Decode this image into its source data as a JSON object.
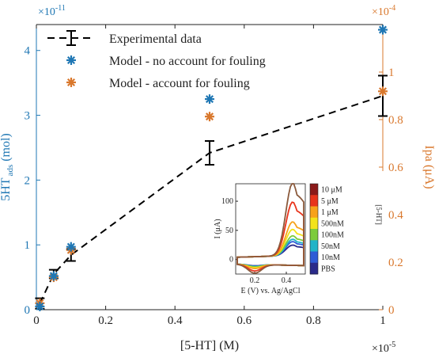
{
  "chart_data": {
    "type": "scatter",
    "x_exponent_label": "×10",
    "x_exponent_power": "-5",
    "y_left_exponent_label": "×10",
    "y_left_exponent_power": "-11",
    "y_right_exponent_label": "×10",
    "y_right_exponent_power": "-4",
    "xlabel": "[5-HT] (M)",
    "ylabel_left_main": "5HT",
    "ylabel_left_sub": "ads",
    "ylabel_left_unit": "(mol)",
    "ylabel_right": "Ipa (μA)",
    "xlim": [
      0,
      1.0
    ],
    "ylim_left": [
      0,
      4.4
    ],
    "ylim_right": [
      0,
      1.2
    ],
    "x_ticks": [
      0,
      0.2,
      0.4,
      0.6,
      0.8,
      1
    ],
    "x_tick_labels": [
      "0",
      "0.2",
      "0.4",
      "0.6",
      "0.8",
      "1"
    ],
    "y_left_ticks": [
      0,
      1,
      2,
      3,
      4
    ],
    "y_left_tick_labels": [
      "0",
      "1",
      "2",
      "3",
      "4"
    ],
    "y_right_ticks": [
      0,
      0.2,
      0.4,
      0.6,
      0.8,
      1
    ],
    "y_right_tick_labels": [
      "0",
      "0.2",
      "0.4",
      "0.6",
      "0.8",
      "1"
    ],
    "colors": {
      "left_axis": "#1f77b4",
      "right_axis": "#d9782d",
      "experimental": "#000000",
      "model_no_fouling": "#1f77b4",
      "model_fouling": "#d9782d"
    },
    "legend_position": "top-left",
    "series": [
      {
        "name": "Experimental data",
        "style": "dashed-errorbar",
        "axis": "right",
        "x": [
          0.01,
          0.05,
          0.1,
          0.5,
          1.0
        ],
        "y": [
          0.026,
          0.15,
          0.23,
          0.66,
          0.9
        ],
        "err": [
          0.022,
          0.018,
          0.025,
          0.05,
          0.085
        ]
      },
      {
        "name": "Model - no account for fouling",
        "style": "asterisk",
        "axis": "left",
        "x": [
          0.01,
          0.05,
          0.1,
          0.5,
          1.0
        ],
        "y": [
          0.05,
          0.52,
          0.97,
          3.25,
          4.32
        ]
      },
      {
        "name": "Model - account for fouling",
        "style": "asterisk",
        "axis": "left",
        "x": [
          0.01,
          0.05,
          0.1,
          0.5,
          1.0
        ],
        "y": [
          0.1,
          0.5,
          0.92,
          2.98,
          3.37
        ]
      }
    ],
    "inset": {
      "xlabel": "E (V) vs. Ag/AgCl",
      "ylabel": "I (μA)",
      "colorbar_label": "[5-HT]",
      "x_ticks": [
        0.2,
        0.4
      ],
      "x_tick_labels": [
        "0.2",
        "0.4"
      ],
      "y_ticks": [
        0,
        50,
        100
      ],
      "y_tick_labels": [
        "0",
        "50",
        "100"
      ],
      "xlim": [
        0.08,
        0.52
      ],
      "ylim": [
        -25,
        130
      ],
      "colorbar_labels": [
        "10 μM",
        "5 μM",
        "1 μM",
        "500nM",
        "100nM",
        "50nM",
        "10nM",
        "PBS"
      ],
      "colorbar_colors": [
        "#8b1a1a",
        "#e8341c",
        "#f7a21b",
        "#f2e31b",
        "#7ccb3c",
        "#22b3c7",
        "#2f5bd6",
        "#2a2a8a"
      ],
      "curves": [
        {
          "color": "#8b5a3c",
          "peak": 125
        },
        {
          "color": "#e8341c",
          "peak": 92
        },
        {
          "color": "#f7a21b",
          "peak": 58
        },
        {
          "color": "#f2e31b",
          "peak": 45
        },
        {
          "color": "#7ccb3c",
          "peak": 34
        },
        {
          "color": "#22b3c7",
          "peak": 28
        },
        {
          "color": "#2f5bd6",
          "peak": 24
        },
        {
          "color": "#2a2a8a",
          "peak": 18
        }
      ]
    }
  }
}
